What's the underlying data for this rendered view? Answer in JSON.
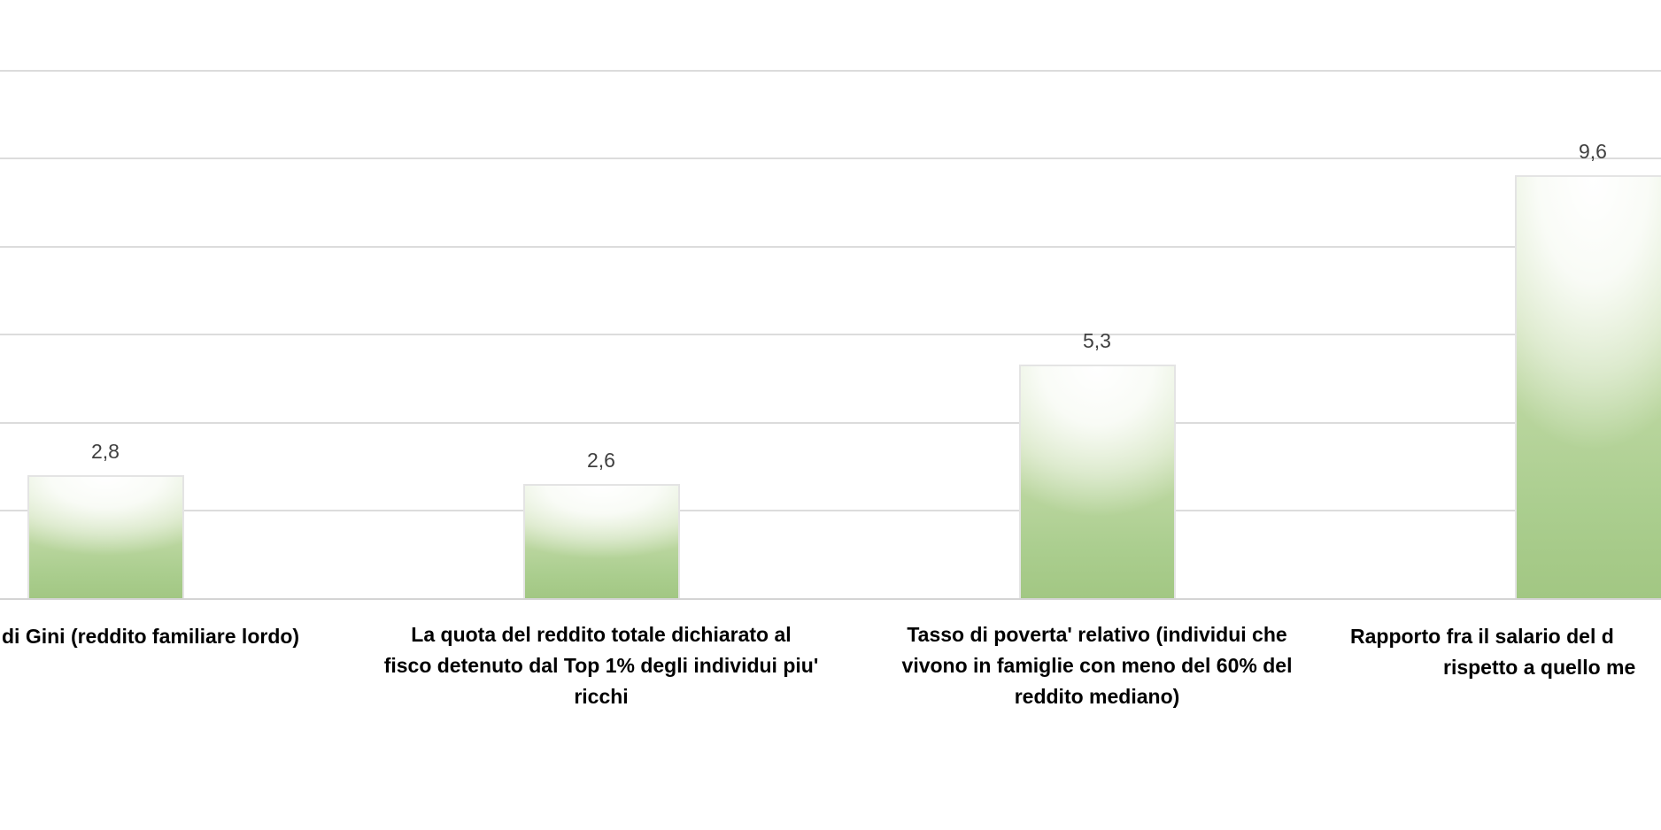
{
  "chart_data": {
    "type": "bar",
    "title": "",
    "categories": [
      "di Gini (reddito familiare lordo)",
      "La quota del reddito totale dichiarato al fisco detenuto dal Top 1% degli individui piu' ricchi",
      "Tasso di poverta' relativo (individui che vivono in famiglie con meno del 60% del reddito mediano)",
      "Rapporto fra il salario del d rispetto a quello me"
    ],
    "values": [
      2.8,
      2.6,
      5.3,
      9.6
    ],
    "value_labels": [
      "2,8",
      "2,6",
      "5,3",
      "9,6"
    ],
    "xlabel": "",
    "ylabel": "",
    "ylim": [
      0,
      12
    ],
    "gridline_interval": 2,
    "grid": true,
    "legend_position": "none"
  },
  "chart": {
    "bars": [
      {
        "value_label": "2,8",
        "label_lines": [
          "di Gini (reddito familiare lordo)"
        ]
      },
      {
        "value_label": "2,6",
        "label_lines": [
          "La quota del reddito totale dichiarato al",
          "fisco detenuto dal Top 1% degli individui piu'",
          "ricchi"
        ]
      },
      {
        "value_label": "5,3",
        "label_lines": [
          "Tasso di poverta' relativo (individui che",
          "vivono in famiglie con meno del 60% del",
          "reddito mediano)"
        ]
      },
      {
        "value_label": "9,6",
        "label_lines": [
          "Rapporto fra il salario del d",
          "rispetto a quello me"
        ]
      }
    ],
    "colors": {
      "bar_gradient_top": "#ffffff",
      "bar_gradient_bottom": "#a2c783",
      "bar_border": "#e4e4e4",
      "gridline": "#dcdcdc",
      "axis_line": "#d4d4d4",
      "value_label_text": "#404040",
      "category_label_text": "#000000"
    }
  }
}
